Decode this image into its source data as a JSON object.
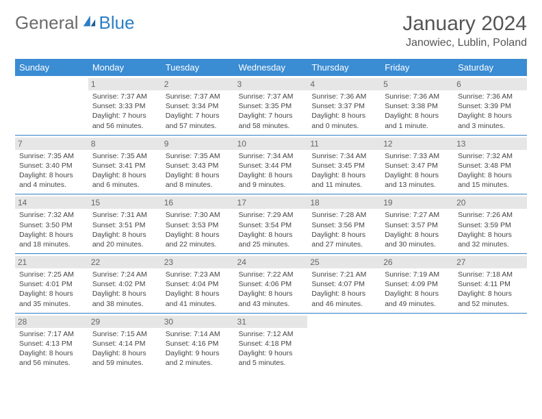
{
  "brand": {
    "word1": "General",
    "word2": "Blue",
    "text_color": "#6a6a6a",
    "accent_color": "#2c7fc4"
  },
  "title": "January 2024",
  "location": "Janowiec, Lublin, Poland",
  "colors": {
    "header_bg": "#3a8cd3",
    "header_text": "#ffffff",
    "row_divider": "#2c7fc4",
    "daynum_bg": "#e6e6e6",
    "daynum_text": "#666666",
    "body_text": "#444444",
    "page_bg": "#ffffff"
  },
  "weekdays": [
    "Sunday",
    "Monday",
    "Tuesday",
    "Wednesday",
    "Thursday",
    "Friday",
    "Saturday"
  ],
  "weeks": [
    [
      null,
      {
        "n": "1",
        "sunrise": "Sunrise: 7:37 AM",
        "sunset": "Sunset: 3:33 PM",
        "daylight": "Daylight: 7 hours and 56 minutes."
      },
      {
        "n": "2",
        "sunrise": "Sunrise: 7:37 AM",
        "sunset": "Sunset: 3:34 PM",
        "daylight": "Daylight: 7 hours and 57 minutes."
      },
      {
        "n": "3",
        "sunrise": "Sunrise: 7:37 AM",
        "sunset": "Sunset: 3:35 PM",
        "daylight": "Daylight: 7 hours and 58 minutes."
      },
      {
        "n": "4",
        "sunrise": "Sunrise: 7:36 AM",
        "sunset": "Sunset: 3:37 PM",
        "daylight": "Daylight: 8 hours and 0 minutes."
      },
      {
        "n": "5",
        "sunrise": "Sunrise: 7:36 AM",
        "sunset": "Sunset: 3:38 PM",
        "daylight": "Daylight: 8 hours and 1 minute."
      },
      {
        "n": "6",
        "sunrise": "Sunrise: 7:36 AM",
        "sunset": "Sunset: 3:39 PM",
        "daylight": "Daylight: 8 hours and 3 minutes."
      }
    ],
    [
      {
        "n": "7",
        "sunrise": "Sunrise: 7:35 AM",
        "sunset": "Sunset: 3:40 PM",
        "daylight": "Daylight: 8 hours and 4 minutes."
      },
      {
        "n": "8",
        "sunrise": "Sunrise: 7:35 AM",
        "sunset": "Sunset: 3:41 PM",
        "daylight": "Daylight: 8 hours and 6 minutes."
      },
      {
        "n": "9",
        "sunrise": "Sunrise: 7:35 AM",
        "sunset": "Sunset: 3:43 PM",
        "daylight": "Daylight: 8 hours and 8 minutes."
      },
      {
        "n": "10",
        "sunrise": "Sunrise: 7:34 AM",
        "sunset": "Sunset: 3:44 PM",
        "daylight": "Daylight: 8 hours and 9 minutes."
      },
      {
        "n": "11",
        "sunrise": "Sunrise: 7:34 AM",
        "sunset": "Sunset: 3:45 PM",
        "daylight": "Daylight: 8 hours and 11 minutes."
      },
      {
        "n": "12",
        "sunrise": "Sunrise: 7:33 AM",
        "sunset": "Sunset: 3:47 PM",
        "daylight": "Daylight: 8 hours and 13 minutes."
      },
      {
        "n": "13",
        "sunrise": "Sunrise: 7:32 AM",
        "sunset": "Sunset: 3:48 PM",
        "daylight": "Daylight: 8 hours and 15 minutes."
      }
    ],
    [
      {
        "n": "14",
        "sunrise": "Sunrise: 7:32 AM",
        "sunset": "Sunset: 3:50 PM",
        "daylight": "Daylight: 8 hours and 18 minutes."
      },
      {
        "n": "15",
        "sunrise": "Sunrise: 7:31 AM",
        "sunset": "Sunset: 3:51 PM",
        "daylight": "Daylight: 8 hours and 20 minutes."
      },
      {
        "n": "16",
        "sunrise": "Sunrise: 7:30 AM",
        "sunset": "Sunset: 3:53 PM",
        "daylight": "Daylight: 8 hours and 22 minutes."
      },
      {
        "n": "17",
        "sunrise": "Sunrise: 7:29 AM",
        "sunset": "Sunset: 3:54 PM",
        "daylight": "Daylight: 8 hours and 25 minutes."
      },
      {
        "n": "18",
        "sunrise": "Sunrise: 7:28 AM",
        "sunset": "Sunset: 3:56 PM",
        "daylight": "Daylight: 8 hours and 27 minutes."
      },
      {
        "n": "19",
        "sunrise": "Sunrise: 7:27 AM",
        "sunset": "Sunset: 3:57 PM",
        "daylight": "Daylight: 8 hours and 30 minutes."
      },
      {
        "n": "20",
        "sunrise": "Sunrise: 7:26 AM",
        "sunset": "Sunset: 3:59 PM",
        "daylight": "Daylight: 8 hours and 32 minutes."
      }
    ],
    [
      {
        "n": "21",
        "sunrise": "Sunrise: 7:25 AM",
        "sunset": "Sunset: 4:01 PM",
        "daylight": "Daylight: 8 hours and 35 minutes."
      },
      {
        "n": "22",
        "sunrise": "Sunrise: 7:24 AM",
        "sunset": "Sunset: 4:02 PM",
        "daylight": "Daylight: 8 hours and 38 minutes."
      },
      {
        "n": "23",
        "sunrise": "Sunrise: 7:23 AM",
        "sunset": "Sunset: 4:04 PM",
        "daylight": "Daylight: 8 hours and 41 minutes."
      },
      {
        "n": "24",
        "sunrise": "Sunrise: 7:22 AM",
        "sunset": "Sunset: 4:06 PM",
        "daylight": "Daylight: 8 hours and 43 minutes."
      },
      {
        "n": "25",
        "sunrise": "Sunrise: 7:21 AM",
        "sunset": "Sunset: 4:07 PM",
        "daylight": "Daylight: 8 hours and 46 minutes."
      },
      {
        "n": "26",
        "sunrise": "Sunrise: 7:19 AM",
        "sunset": "Sunset: 4:09 PM",
        "daylight": "Daylight: 8 hours and 49 minutes."
      },
      {
        "n": "27",
        "sunrise": "Sunrise: 7:18 AM",
        "sunset": "Sunset: 4:11 PM",
        "daylight": "Daylight: 8 hours and 52 minutes."
      }
    ],
    [
      {
        "n": "28",
        "sunrise": "Sunrise: 7:17 AM",
        "sunset": "Sunset: 4:13 PM",
        "daylight": "Daylight: 8 hours and 56 minutes."
      },
      {
        "n": "29",
        "sunrise": "Sunrise: 7:15 AM",
        "sunset": "Sunset: 4:14 PM",
        "daylight": "Daylight: 8 hours and 59 minutes."
      },
      {
        "n": "30",
        "sunrise": "Sunrise: 7:14 AM",
        "sunset": "Sunset: 4:16 PM",
        "daylight": "Daylight: 9 hours and 2 minutes."
      },
      {
        "n": "31",
        "sunrise": "Sunrise: 7:12 AM",
        "sunset": "Sunset: 4:18 PM",
        "daylight": "Daylight: 9 hours and 5 minutes."
      },
      null,
      null,
      null
    ]
  ]
}
